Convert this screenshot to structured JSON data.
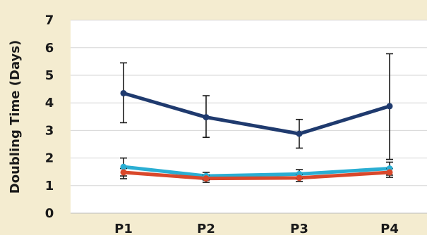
{
  "chart_data": {
    "type": "line",
    "title": "",
    "xlabel": "",
    "ylabel": "Doubling Time (Days)",
    "categories": [
      "P1",
      "P2",
      "P3",
      "P4"
    ],
    "yticks": [
      "0",
      "1",
      "2",
      "3",
      "4",
      "5",
      "6",
      "7"
    ],
    "ylim": [
      0,
      7
    ],
    "grid": true,
    "legend": "none",
    "series": [
      {
        "color": "#1f3a6e",
        "values": [
          4.35,
          3.48,
          2.88,
          3.88
        ],
        "error_low": [
          3.28,
          2.75,
          2.36,
          1.95
        ],
        "error_high": [
          5.45,
          4.26,
          3.4,
          5.78
        ]
      },
      {
        "color": "#2aaed3",
        "values": [
          1.68,
          1.35,
          1.42,
          1.62
        ],
        "error_low": [
          1.35,
          1.2,
          1.25,
          1.38
        ],
        "error_high": [
          2.0,
          1.48,
          1.58,
          1.85
        ]
      },
      {
        "color": "#d9482b",
        "values": [
          1.48,
          1.26,
          1.28,
          1.48
        ],
        "error_low": [
          1.25,
          1.12,
          1.15,
          1.3
        ],
        "error_high": [
          1.62,
          1.38,
          1.4,
          1.62
        ]
      }
    ]
  }
}
